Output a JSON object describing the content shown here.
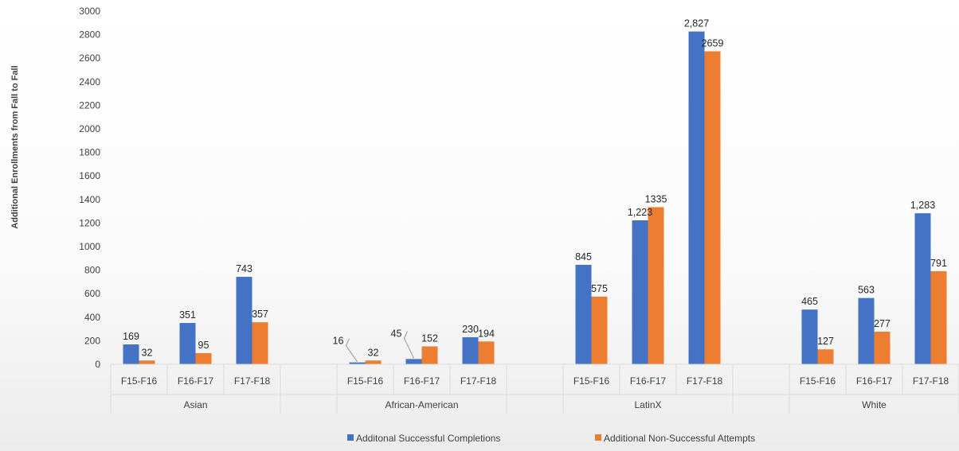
{
  "chart_data": {
    "type": "bar",
    "title": "",
    "ylabel": "Additional Enrollments from Fall to Fall",
    "xlabel": "",
    "ylim": [
      0,
      3000
    ],
    "yticks": [
      "0",
      "200",
      "400",
      "600",
      "800",
      "1000",
      "1200",
      "1400",
      "1600",
      "1800",
      "2000",
      "2200",
      "2400",
      "2600",
      "2800",
      "3000"
    ],
    "grid": false,
    "legend_position": "bottom",
    "groups": [
      {
        "name": "Asian",
        "categories": [
          "F15-F16",
          "F16-F17",
          "F17-F18"
        ]
      },
      {
        "name": "African-American",
        "categories": [
          "F15-F16",
          "F16-F17",
          "F17-F18"
        ]
      },
      {
        "name": "LatinX",
        "categories": [
          "F15-F16",
          "F16-F17",
          "F17-F18"
        ]
      },
      {
        "name": "White",
        "categories": [
          "F15-F16",
          "F16-F17",
          "F17-F18"
        ]
      }
    ],
    "series": [
      {
        "name": "Additonal Successful Completions",
        "color": "#4472c4",
        "values": [
          169,
          351,
          743,
          16,
          45,
          230,
          845,
          1223,
          2827,
          465,
          563,
          1283
        ],
        "labels": [
          "169",
          "351",
          "743",
          "16",
          "45",
          "230",
          "845",
          "1,223",
          "2,827",
          "465",
          "563",
          "1,283"
        ]
      },
      {
        "name": "Additional Non-Successful Attempts",
        "color": "#ed7d31",
        "values": [
          32,
          95,
          357,
          32,
          152,
          194,
          575,
          1335,
          2659,
          127,
          277,
          791
        ],
        "labels": [
          "32",
          "95",
          "357",
          "32",
          "152",
          "194",
          "575",
          "1335",
          "2659",
          "127",
          "277",
          "791"
        ]
      }
    ]
  }
}
